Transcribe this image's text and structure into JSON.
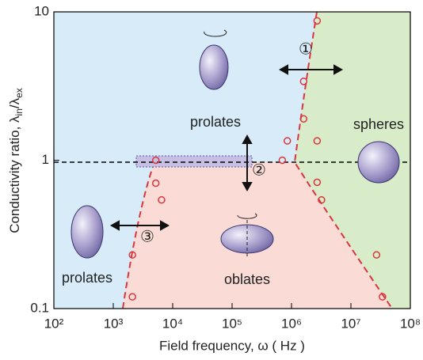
{
  "chart_data": {
    "type": "scatter",
    "x_label": "Field frequency, ω ( Hz )",
    "y_label": {
      "main": "Conductivity ratio, λ",
      "sub1": "in",
      "mid": "/λ",
      "sub2": "ex"
    },
    "x": [
      2700000,
      1600000,
      1600000,
      850000,
      700000,
      2700000,
      2700000,
      3200000,
      5200,
      5200,
      6500,
      2100,
      2100,
      27000000,
      34000000
    ],
    "values": [
      8.7,
      3.4,
      1.9,
      1.35,
      1.0,
      1.35,
      0.71,
      0.54,
      1.0,
      0.7,
      0.54,
      0.23,
      0.12,
      0.23,
      0.12
    ],
    "color": "#d9363e",
    "log_x": true,
    "log_y": true,
    "xlim": [
      100,
      100000000
    ],
    "ylim": [
      0.1,
      10
    ],
    "xticks": [
      {
        "value": 100,
        "label": "10²"
      },
      {
        "value": 1000,
        "label": "10³"
      },
      {
        "value": 10000,
        "label": "10⁴"
      },
      {
        "value": 100000,
        "label": "10⁵"
      },
      {
        "value": 1000000,
        "label": "10⁶"
      },
      {
        "value": 10000000,
        "label": "10⁷"
      },
      {
        "value": 100000000,
        "label": "10⁸"
      }
    ],
    "yticks": [
      0.1,
      1,
      10
    ],
    "annotations": [
      "prolates",
      "spheres",
      "oblates",
      "prolates",
      "①",
      "②",
      "③"
    ]
  }
}
